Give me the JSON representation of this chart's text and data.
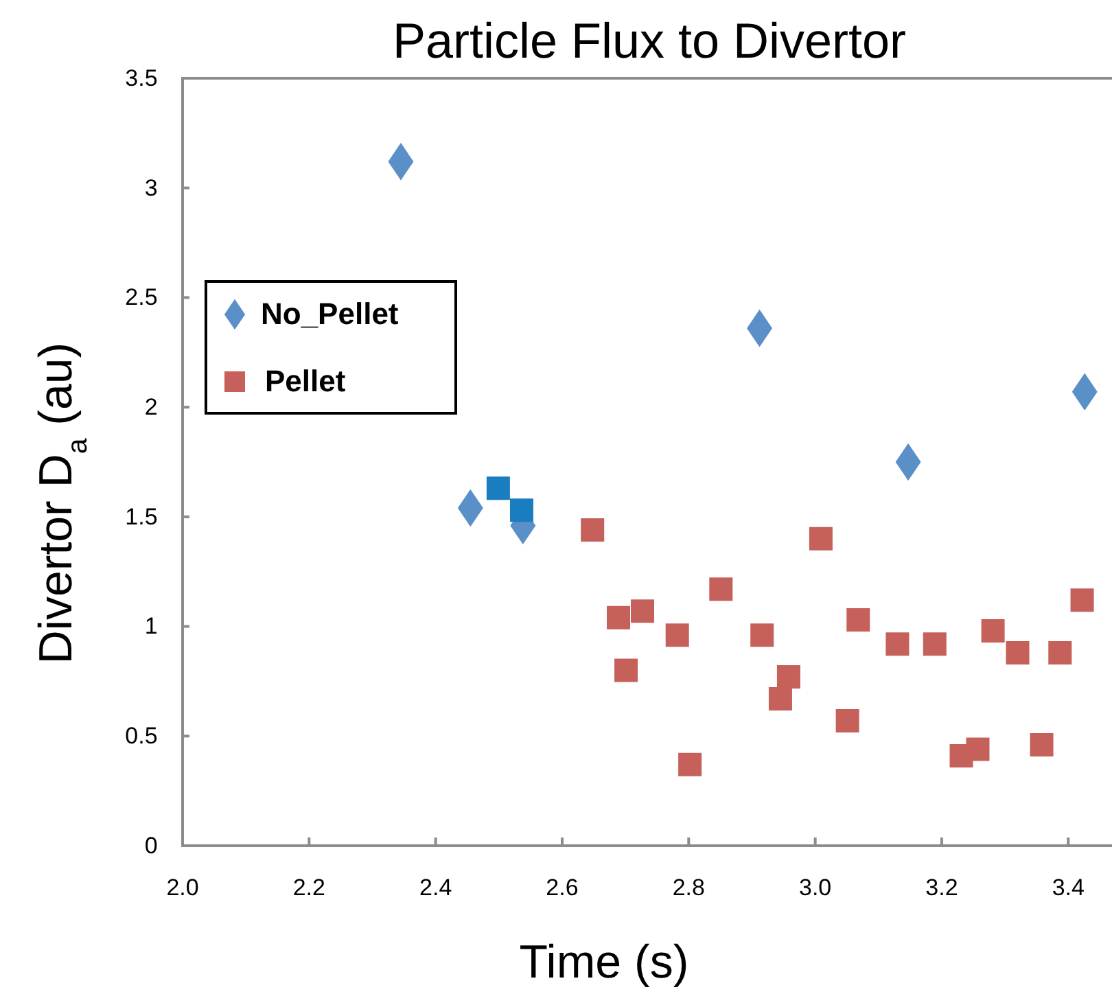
{
  "chart_data": {
    "type": "scatter",
    "title": "Particle Flux to Divertor",
    "xlabel": "Time (s)",
    "ylabel": "Divertor D$_{a}$ (au)",
    "xlim": [
      2.0,
      3.48
    ],
    "xticks": [
      {
        "value": 2.0,
        "label": "2.0"
      },
      {
        "value": 2.2,
        "label": "2.2"
      },
      {
        "value": 2.4,
        "label": "2.4"
      },
      {
        "value": 2.6,
        "label": "2.6"
      },
      {
        "value": 2.8,
        "label": "2.8"
      },
      {
        "value": 3.0,
        "label": "3.0"
      },
      {
        "value": 3.2,
        "label": "3.2"
      },
      {
        "value": 3.4,
        "label": "3.4"
      }
    ],
    "ylim": [
      0,
      3.5
    ],
    "yticks": [
      0,
      0.5,
      1,
      1.5,
      2,
      2.5,
      3,
      3.5
    ],
    "grid": false,
    "legend": "left",
    "series": [
      {
        "name": "No_Pellet",
        "color": "#5b8fc7",
        "marker": "diamond",
        "x": [
          2.345,
          2.912,
          3.426,
          3.147,
          2.455,
          2.538
        ],
        "values": [
          3.12,
          2.36,
          2.07,
          1.75,
          1.54,
          1.46
        ]
      },
      {
        "name": "Pellet",
        "color": "#c5605a",
        "marker": "square",
        "colors": [
          "#1a7dc0",
          "#1a7dc0",
          "#c5605a",
          "#c5605a",
          "#c5605a",
          "#c5605a",
          "#c5605a",
          "#c5605a",
          "#c5605a",
          "#c5605a",
          "#c5605a",
          "#c5605a",
          "#c5605a",
          "#c5605a",
          "#c5605a",
          "#c5605a",
          "#c5605a",
          "#c5605a",
          "#c5605a",
          "#c5605a",
          "#c5605a",
          "#c5605a",
          "#c5605a",
          "#c5605a"
        ],
        "x": [
          2.499,
          2.536,
          2.648,
          2.689,
          2.727,
          2.701,
          2.782,
          2.851,
          2.802,
          2.916,
          2.958,
          2.945,
          3.009,
          3.068,
          3.051,
          3.13,
          3.189,
          3.231,
          3.257,
          3.281,
          3.32,
          3.358,
          3.387,
          3.422
        ],
        "values": [
          1.63,
          1.53,
          1.44,
          1.04,
          1.07,
          0.8,
          0.96,
          1.17,
          0.37,
          0.96,
          0.77,
          0.67,
          1.4,
          1.03,
          0.57,
          0.92,
          0.92,
          0.41,
          0.44,
          0.98,
          0.88,
          0.46,
          0.88,
          1.12
        ]
      }
    ]
  }
}
